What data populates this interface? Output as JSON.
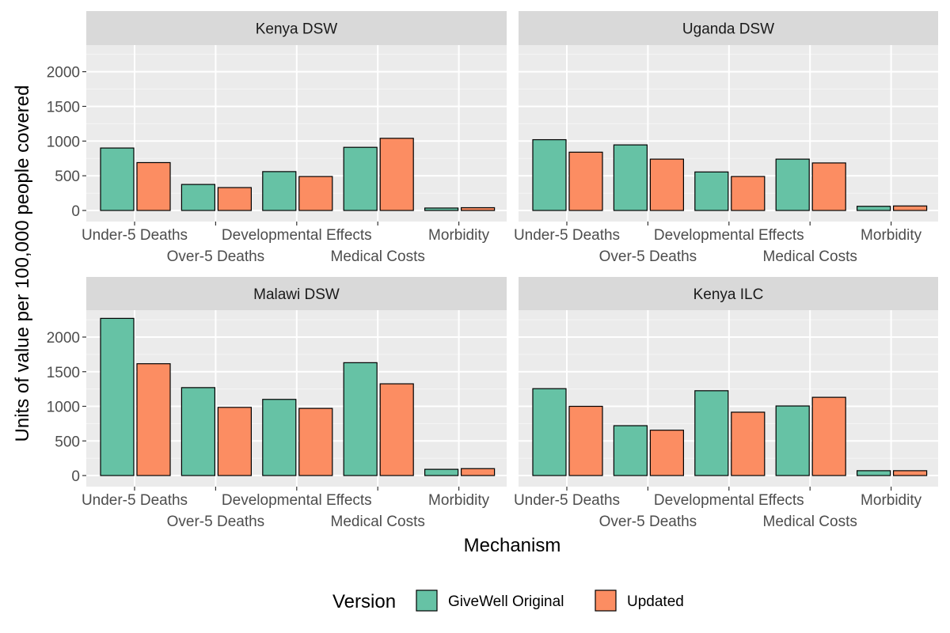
{
  "chart_data": {
    "type": "bar",
    "layout": "facet-grid-2x2",
    "xlabel": "Mechanism",
    "ylabel": "Units of value per 100,000 people covered",
    "ylim": [
      0,
      2350
    ],
    "yticks": [
      0,
      500,
      1000,
      1500,
      2000
    ],
    "categories": [
      "Under-5 Deaths",
      "Over-5 Deaths",
      "Developmental Effects",
      "Medical Costs",
      "Morbidity"
    ],
    "grid": true,
    "legend": {
      "title": "Version",
      "position": "bottom",
      "entries": [
        "GiveWell Original",
        "Updated"
      ]
    },
    "colors": {
      "GiveWell Original": "#66c2a5",
      "Updated": "#fc8d62"
    },
    "panels": [
      {
        "title": "Kenya DSW",
        "series": [
          {
            "name": "GiveWell Original",
            "values": [
              900,
              375,
              560,
              910,
              35
            ]
          },
          {
            "name": "Updated",
            "values": [
              690,
              330,
              490,
              1040,
              40
            ]
          }
        ]
      },
      {
        "title": "Uganda DSW",
        "series": [
          {
            "name": "GiveWell Original",
            "values": [
              1020,
              945,
              555,
              740,
              60
            ]
          },
          {
            "name": "Updated",
            "values": [
              840,
              740,
              490,
              685,
              65
            ]
          }
        ]
      },
      {
        "title": "Malawi DSW",
        "series": [
          {
            "name": "GiveWell Original",
            "values": [
              2270,
              1270,
              1100,
              1630,
              90
            ]
          },
          {
            "name": "Updated",
            "values": [
              1615,
              985,
              970,
              1325,
              100
            ]
          }
        ]
      },
      {
        "title": "Kenya ILC",
        "series": [
          {
            "name": "GiveWell Original",
            "values": [
              1255,
              720,
              1225,
              1005,
              70
            ]
          },
          {
            "name": "Updated",
            "values": [
              1000,
              655,
              915,
              1130,
              70
            ]
          }
        ]
      }
    ]
  }
}
